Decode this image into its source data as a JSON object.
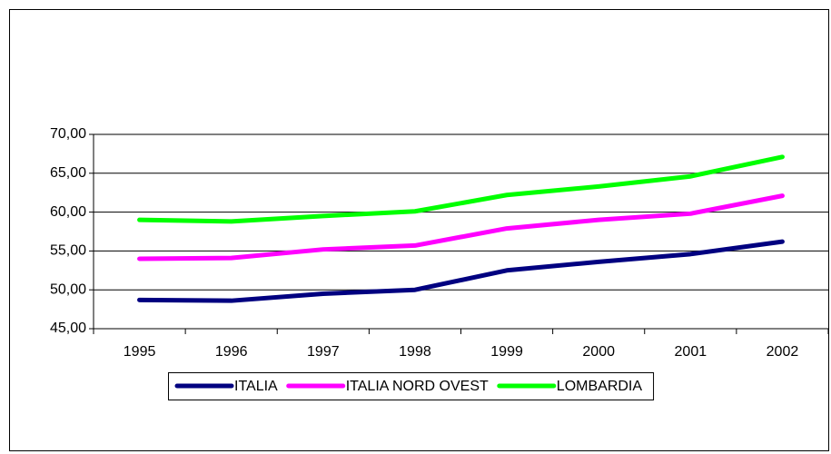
{
  "chart_data": {
    "type": "line",
    "categories": [
      "1995",
      "1996",
      "1997",
      "1998",
      "1999",
      "2000",
      "2001",
      "2002"
    ],
    "series": [
      {
        "name": "ITALIA",
        "color": "#000080",
        "values": [
          48.7,
          48.6,
          49.5,
          50.0,
          52.5,
          53.6,
          54.6,
          56.2
        ]
      },
      {
        "name": "ITALIA NORD OVEST",
        "color": "#ff00ff",
        "values": [
          54.0,
          54.1,
          55.2,
          55.7,
          57.9,
          59.0,
          59.8,
          62.1
        ]
      },
      {
        "name": "LOMBARDIA",
        "color": "#00ff00",
        "values": [
          59.0,
          58.8,
          59.5,
          60.1,
          62.2,
          63.3,
          64.6,
          67.1
        ]
      }
    ],
    "ylim": [
      45,
      70
    ],
    "yticks": [
      {
        "value": 45,
        "label": "45,00"
      },
      {
        "value": 50,
        "label": "50,00"
      },
      {
        "value": 55,
        "label": "55,00"
      },
      {
        "value": 60,
        "label": "60,00"
      },
      {
        "value": 65,
        "label": "65,00"
      },
      {
        "value": 70,
        "label": "70,00"
      }
    ],
    "grid": true,
    "legend": "bottom"
  }
}
